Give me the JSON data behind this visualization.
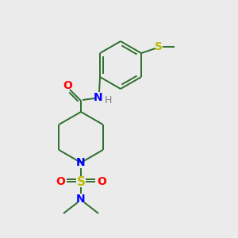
{
  "background_color": "#ebebeb",
  "bond_color": "#2d6e2d",
  "atom_colors": {
    "O": "#ff0000",
    "N": "#0000ff",
    "S_thio": "#bbbb00",
    "S_sulfonyl": "#bbbb00",
    "H": "#808080",
    "C": "#2d6e2d"
  },
  "figsize": [
    3.0,
    3.0
  ],
  "dpi": 100
}
